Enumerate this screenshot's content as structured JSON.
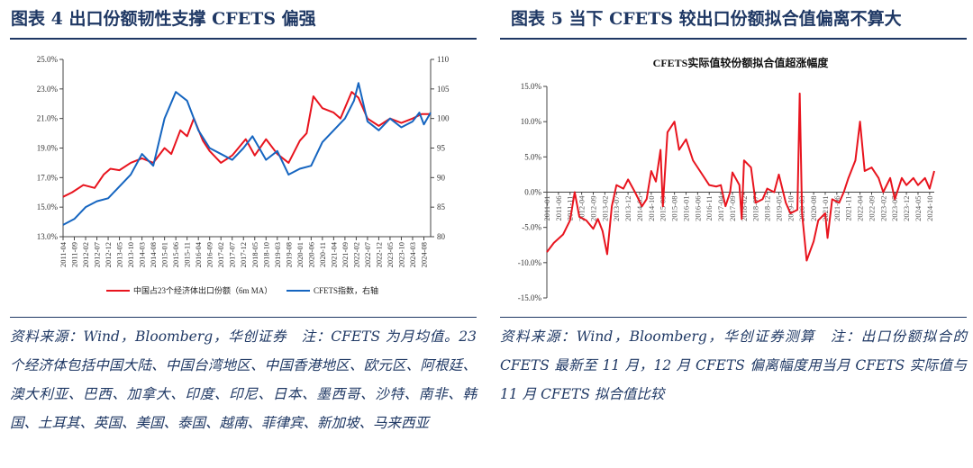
{
  "chart_data": [
    {
      "type": "line",
      "title": "图表 4  出口份额韧性支撑 CFETS 偏强",
      "ylim_left": [
        13,
        25
      ],
      "yticks_left": [
        "13.0%",
        "15.0%",
        "17.0%",
        "19.0%",
        "21.0%",
        "23.0%",
        "25.0%"
      ],
      "ylim_right": [
        80,
        110
      ],
      "yticks_right": [
        "80",
        "85",
        "90",
        "95",
        "100",
        "105",
        "110"
      ],
      "x_range": [
        "2011-04",
        "2024-11"
      ],
      "xticks": [
        "2011-04",
        "2011-09",
        "2012-02",
        "2012-07",
        "2012-12",
        "2013-05",
        "2013-10",
        "2014-03",
        "2014-08",
        "2015-01",
        "2015-06",
        "2015-11",
        "2016-04",
        "2016-09",
        "2017-02",
        "2017-07",
        "2017-12",
        "2018-05",
        "2018-10",
        "2019-03",
        "2019-08",
        "2020-01",
        "2020-06",
        "2020-11",
        "2021-04",
        "2021-09",
        "2022-02",
        "2022-07",
        "2022-12",
        "2023-05",
        "2023-10",
        "2024-03",
        "2024-08"
      ],
      "series": [
        {
          "name": "中国占23个经济体出口份额（6m MA）",
          "axis": "left",
          "color": "#e8141e",
          "points": [
            [
              "2011-04",
              15.7
            ],
            [
              "2011-08",
              16.0
            ],
            [
              "2012-01",
              16.5
            ],
            [
              "2012-06",
              16.3
            ],
            [
              "2012-10",
              17.2
            ],
            [
              "2013-01",
              17.6
            ],
            [
              "2013-05",
              17.5
            ],
            [
              "2013-10",
              18.0
            ],
            [
              "2014-03",
              18.3
            ],
            [
              "2014-08",
              18.0
            ],
            [
              "2015-01",
              19.0
            ],
            [
              "2015-04",
              18.6
            ],
            [
              "2015-08",
              20.2
            ],
            [
              "2015-11",
              19.8
            ],
            [
              "2016-02",
              21.0
            ],
            [
              "2016-06",
              19.5
            ],
            [
              "2016-09",
              18.8
            ],
            [
              "2017-02",
              18.0
            ],
            [
              "2017-07",
              18.5
            ],
            [
              "2018-01",
              19.6
            ],
            [
              "2018-05",
              18.5
            ],
            [
              "2018-10",
              19.6
            ],
            [
              "2019-03",
              18.6
            ],
            [
              "2019-08",
              18.0
            ],
            [
              "2020-01",
              19.5
            ],
            [
              "2020-04",
              20.0
            ],
            [
              "2020-07",
              22.5
            ],
            [
              "2020-11",
              21.7
            ],
            [
              "2021-04",
              21.4
            ],
            [
              "2021-07",
              21.0
            ],
            [
              "2021-12",
              22.8
            ],
            [
              "2022-03",
              22.4
            ],
            [
              "2022-07",
              21.0
            ],
            [
              "2022-12",
              20.5
            ],
            [
              "2023-05",
              21.0
            ],
            [
              "2023-10",
              20.7
            ],
            [
              "2024-03",
              21.0
            ],
            [
              "2024-07",
              21.3
            ],
            [
              "2024-11",
              21.3
            ]
          ]
        },
        {
          "name": "CFETS指数，右轴",
          "axis": "right",
          "color": "#1565c0",
          "points": [
            [
              "2011-04",
              82.0
            ],
            [
              "2011-09",
              83.0
            ],
            [
              "2012-02",
              85.0
            ],
            [
              "2012-07",
              86.0
            ],
            [
              "2012-12",
              86.5
            ],
            [
              "2013-05",
              88.5
            ],
            [
              "2013-10",
              90.5
            ],
            [
              "2014-03",
              94.0
            ],
            [
              "2014-08",
              92.0
            ],
            [
              "2015-01",
              100.0
            ],
            [
              "2015-06",
              104.5
            ],
            [
              "2015-11",
              103.0
            ],
            [
              "2016-04",
              98.0
            ],
            [
              "2016-09",
              95.0
            ],
            [
              "2017-02",
              94.0
            ],
            [
              "2017-07",
              93.0
            ],
            [
              "2017-12",
              95.0
            ],
            [
              "2018-04",
              97.0
            ],
            [
              "2018-10",
              93.0
            ],
            [
              "2019-03",
              94.5
            ],
            [
              "2019-08",
              90.5
            ],
            [
              "2020-01",
              91.5
            ],
            [
              "2020-06",
              92.0
            ],
            [
              "2020-11",
              96.0
            ],
            [
              "2021-04",
              98.0
            ],
            [
              "2021-09",
              100.0
            ],
            [
              "2022-01",
              103.0
            ],
            [
              "2022-03",
              106.0
            ],
            [
              "2022-07",
              99.5
            ],
            [
              "2022-12",
              98.0
            ],
            [
              "2023-05",
              100.0
            ],
            [
              "2023-10",
              98.5
            ],
            [
              "2024-03",
              99.5
            ],
            [
              "2024-06",
              101.0
            ],
            [
              "2024-08",
              99.0
            ],
            [
              "2024-11",
              101.0
            ]
          ]
        }
      ],
      "legend_position": "bottom",
      "note": "资料来源：Wind，Bloomberg，华创证券　注：CFETS 为月均值。23 个经济体包括中国大陆、中国台湾地区、中国香港地区、欧元区、阿根廷、澳大利亚、巴西、加拿大、印度、印尼、日本、墨西哥、沙特、南非、韩国、土耳其、英国、美国、泰国、越南、菲律宾、新加坡、马来西亚"
    },
    {
      "type": "line",
      "title": "图表 5  当下 CFETS 较出口份额拟合值偏离不算大",
      "inner_title": "CFETS实际值较份额拟合值超涨幅度",
      "ylim": [
        -15,
        15
      ],
      "yticks": [
        "-15.0%",
        "-10.0%",
        "-5.0%",
        "0.0%",
        "5.0%",
        "10.0%",
        "15.0%"
      ],
      "x_range": [
        "2011-01",
        "2024-12"
      ],
      "xticks": [
        "2011-01",
        "2011-06",
        "2011-11",
        "2012-04",
        "2012-09",
        "2013-02",
        "2013-07",
        "2013-12",
        "2014-05",
        "2014-10",
        "2015-03",
        "2015-08",
        "2016-01",
        "2016-06",
        "2016-11",
        "2017-04",
        "2017-09",
        "2018-02",
        "2018-07",
        "2018-12",
        "2019-05",
        "2019-10",
        "2020-03",
        "2020-08",
        "2021-01",
        "2021-06",
        "2021-11",
        "2022-04",
        "2022-09",
        "2023-02",
        "2023-07",
        "2023-12",
        "2024-05",
        "2024-10"
      ],
      "series": [
        {
          "name": "CFETS实际值较份额拟合值超涨幅度",
          "color": "#e8141e",
          "points": [
            [
              "2011-01",
              -8.5
            ],
            [
              "2011-04",
              -7.2
            ],
            [
              "2011-08",
              -6.0
            ],
            [
              "2011-11",
              -4.0
            ],
            [
              "2012-01",
              0.0
            ],
            [
              "2012-03",
              -3.5
            ],
            [
              "2012-06",
              -4.0
            ],
            [
              "2012-09",
              -5.2
            ],
            [
              "2012-11",
              -3.8
            ],
            [
              "2013-01",
              -5.5
            ],
            [
              "2013-03",
              -8.8
            ],
            [
              "2013-05",
              -2.0
            ],
            [
              "2013-07",
              1.0
            ],
            [
              "2013-10",
              0.5
            ],
            [
              "2013-12",
              1.8
            ],
            [
              "2014-03",
              0.0
            ],
            [
              "2014-06",
              -2.0
            ],
            [
              "2014-08",
              -1.0
            ],
            [
              "2014-10",
              3.0
            ],
            [
              "2014-12",
              1.5
            ],
            [
              "2015-02",
              6.0
            ],
            [
              "2015-03",
              -2.0
            ],
            [
              "2015-05",
              8.5
            ],
            [
              "2015-08",
              10.0
            ],
            [
              "2015-10",
              6.0
            ],
            [
              "2016-01",
              7.5
            ],
            [
              "2016-04",
              4.5
            ],
            [
              "2016-07",
              3.0
            ],
            [
              "2016-11",
              1.0
            ],
            [
              "2017-02",
              0.8
            ],
            [
              "2017-04",
              1.0
            ],
            [
              "2017-06",
              -2.0
            ],
            [
              "2017-08",
              0.0
            ],
            [
              "2017-09",
              2.8
            ],
            [
              "2017-12",
              1.0
            ],
            [
              "2018-01",
              -3.8
            ],
            [
              "2018-02",
              4.5
            ],
            [
              "2018-05",
              3.5
            ],
            [
              "2018-07",
              -1.5
            ],
            [
              "2018-10",
              -1.0
            ],
            [
              "2018-12",
              0.5
            ],
            [
              "2019-03",
              0.0
            ],
            [
              "2019-05",
              2.5
            ],
            [
              "2019-08",
              -1.5
            ],
            [
              "2019-10",
              -3.0
            ],
            [
              "2020-01",
              -2.5
            ],
            [
              "2020-02",
              14.0
            ],
            [
              "2020-03",
              -3.0
            ],
            [
              "2020-05",
              -9.7
            ],
            [
              "2020-08",
              -7.0
            ],
            [
              "2020-10",
              -4.0
            ],
            [
              "2021-01",
              -3.0
            ],
            [
              "2021-02",
              -6.5
            ],
            [
              "2021-04",
              -1.0
            ],
            [
              "2021-07",
              -1.5
            ],
            [
              "2021-09",
              0.0
            ],
            [
              "2021-11",
              2.0
            ],
            [
              "2022-02",
              4.5
            ],
            [
              "2022-04",
              10.0
            ],
            [
              "2022-06",
              3.0
            ],
            [
              "2022-09",
              3.5
            ],
            [
              "2022-12",
              2.0
            ],
            [
              "2023-02",
              0.0
            ],
            [
              "2023-05",
              2.0
            ],
            [
              "2023-07",
              -1.0
            ],
            [
              "2023-10",
              2.0
            ],
            [
              "2023-12",
              1.0
            ],
            [
              "2024-03",
              2.0
            ],
            [
              "2024-05",
              1.0
            ],
            [
              "2024-08",
              2.0
            ],
            [
              "2024-10",
              0.5
            ],
            [
              "2024-12",
              3.0
            ]
          ]
        }
      ],
      "note": "资料来源：Wind，Bloomberg，华创证券测算　注：出口份额拟合的 CFETS 最新至 11 月，12 月 CFETS 偏离幅度用当月 CFETS 实际值与 11 月 CFETS 拟合值比较"
    }
  ]
}
